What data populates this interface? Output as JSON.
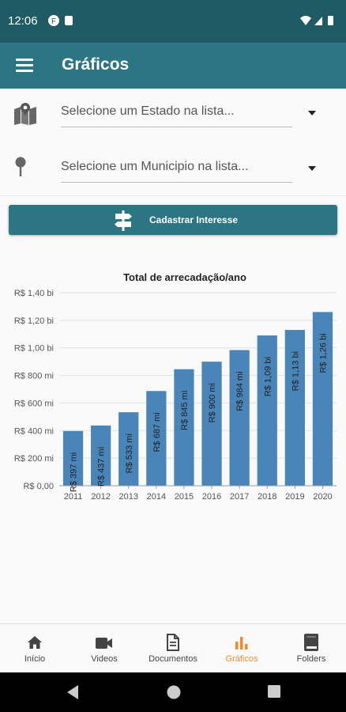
{
  "status": {
    "time": "12:06"
  },
  "appbar": {
    "title": "Gráficos"
  },
  "filters": {
    "state_placeholder": "Selecione um Estado na lista...",
    "city_placeholder": "Selecione um Municipio na lista..."
  },
  "cta": {
    "label": "Cadastrar Interesse"
  },
  "chart_data": {
    "type": "bar",
    "title": "Total de arrecadação/ano",
    "categories": [
      "2011",
      "2012",
      "2013",
      "2014",
      "2015",
      "2016",
      "2017",
      "2018",
      "2019",
      "2020"
    ],
    "values": [
      397,
      437,
      533,
      687,
      845,
      900,
      984,
      1090,
      1130,
      1260
    ],
    "data_labels": [
      "R$ 397 mi",
      "R$ 437 mi",
      "R$ 533 mi",
      "R$ 687 mi",
      "R$ 845 mi",
      "R$ 900 mi",
      "R$ 984 mi",
      "R$ 1,09 bi",
      "R$ 1,13 bi",
      "R$ 1,26 bi"
    ],
    "y_ticks": [
      0,
      200,
      400,
      600,
      800,
      1000,
      1200,
      1400
    ],
    "y_tick_labels": [
      "R$ 0,00",
      "R$ 200 mi",
      "R$ 400 mi",
      "R$ 600 mi",
      "R$ 800 mi",
      "R$ 1,00 bi",
      "R$ 1,20 bi",
      "R$ 1,40 bi"
    ],
    "ylim": [
      0,
      1400
    ],
    "grid": true,
    "bar_color": "#4a85b9"
  },
  "bottom_nav": {
    "items": [
      {
        "label": "Início",
        "icon": "home-icon"
      },
      {
        "label": "Videos",
        "icon": "video-camera-icon"
      },
      {
        "label": "Documentos",
        "icon": "document-icon"
      },
      {
        "label": "Gráficos",
        "icon": "bar-chart-icon"
      },
      {
        "label": "Folders",
        "icon": "book-icon"
      }
    ],
    "active_index": 3,
    "active_color": "#f18a2c"
  },
  "colors": {
    "appbar": "#2b7682",
    "statusbar": "#1e5b64",
    "bar": "#4a85b9"
  }
}
